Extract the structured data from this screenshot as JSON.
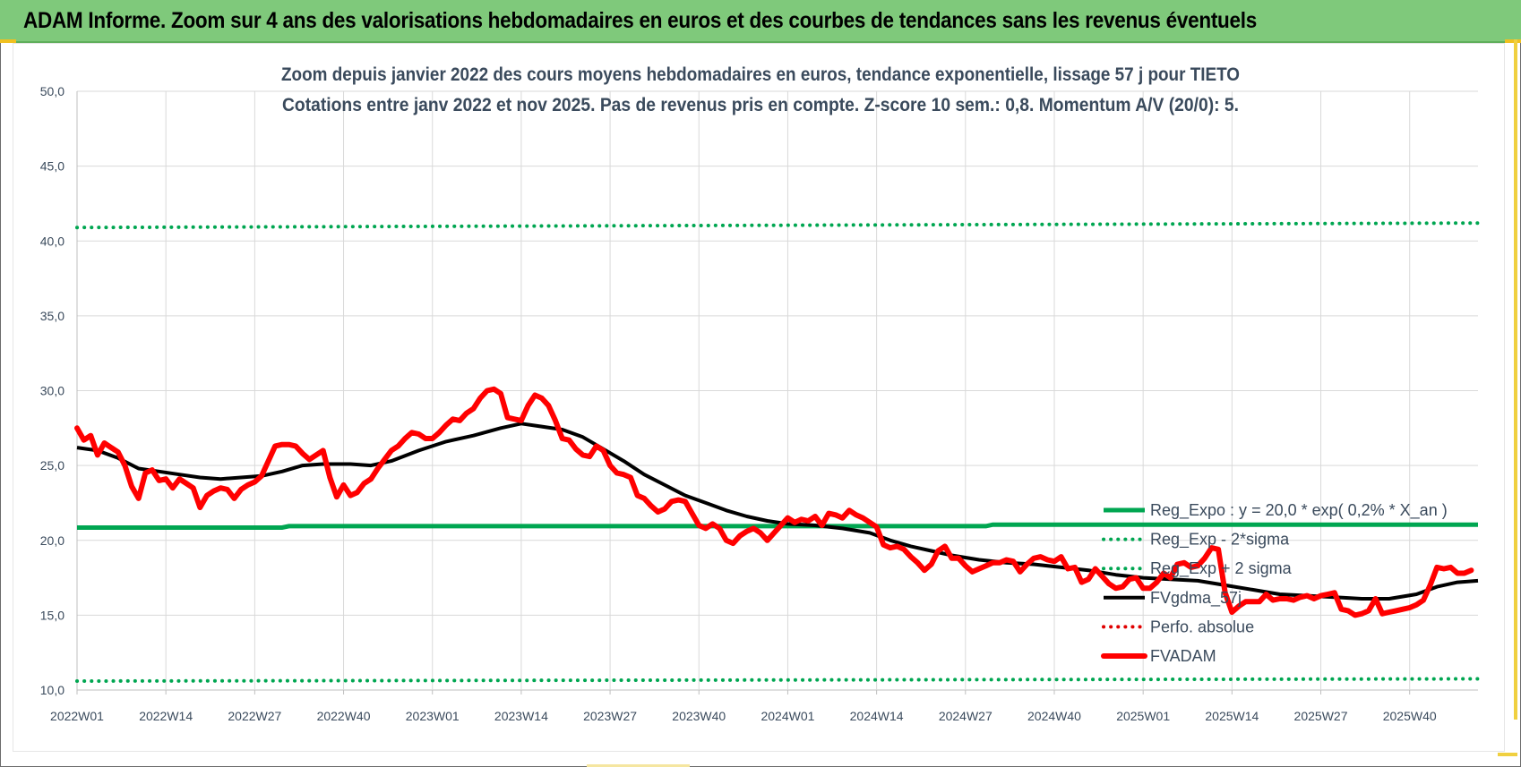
{
  "header": {
    "title": "ADAM Informe. Zoom sur 4 ans des valorisations hebdomadaires en euros et des courbes de tendances sans les revenus éventuels"
  },
  "chart_data": {
    "type": "line",
    "title": "Zoom depuis janvier 2022 des cours moyens hebdomadaires en euros, tendance exponentielle, lissage 57 j pour TIETO",
    "subtitle": "Cotations entre janv 2022 et nov 2025. Pas de revenus pris en compte. Z-score 10 sem.: 0,8. Momentum A/V (20/0): 5.",
    "xlabel": "",
    "ylabel": "",
    "ylim": [
      10,
      50
    ],
    "yticks": [
      "10,0",
      "15,0",
      "20,0",
      "25,0",
      "30,0",
      "35,0",
      "40,0",
      "45,0",
      "50,0"
    ],
    "xticks": [
      "2022W01",
      "2022W14",
      "2022W27",
      "2022W40",
      "2023W01",
      "2023W14",
      "2023W27",
      "2023W40",
      "2024W01",
      "2024W14",
      "2024W27",
      "2024W40",
      "2025W01",
      "2025W14",
      "2025W27",
      "2025W40"
    ],
    "x_unit": "week index from 2022W01",
    "grid": true,
    "legend_position": "right",
    "series": [
      {
        "name": "Reg_Expo : y = 20,0 * exp( 0,2% * X_an )",
        "color": "#00a651",
        "style": "solid",
        "points": [
          [
            0,
            20.85
          ],
          [
            30,
            20.85
          ],
          [
            31,
            20.95
          ],
          [
            133,
            20.95
          ],
          [
            134,
            21.05
          ],
          [
            205,
            21.05
          ]
        ]
      },
      {
        "name": "Reg_Exp - 2*sigma",
        "color": "#00a651",
        "style": "dotted",
        "points": [
          [
            0,
            10.6
          ],
          [
            205,
            10.75
          ]
        ]
      },
      {
        "name": "Reg_Exp + 2 sigma",
        "color": "#00a651",
        "style": "dotted",
        "points": [
          [
            0,
            40.9
          ],
          [
            205,
            41.2
          ]
        ]
      },
      {
        "name": "FVgdma_57j",
        "color": "#000000",
        "style": "solid",
        "points": [
          [
            0,
            26.2
          ],
          [
            3,
            26.0
          ],
          [
            6,
            25.5
          ],
          [
            9,
            24.8
          ],
          [
            12,
            24.6
          ],
          [
            15,
            24.4
          ],
          [
            18,
            24.2
          ],
          [
            21,
            24.1
          ],
          [
            24,
            24.2
          ],
          [
            27,
            24.3
          ],
          [
            30,
            24.6
          ],
          [
            33,
            25.0
          ],
          [
            36,
            25.1
          ],
          [
            40,
            25.1
          ],
          [
            43,
            25.0
          ],
          [
            46,
            25.3
          ],
          [
            50,
            26.0
          ],
          [
            54,
            26.6
          ],
          [
            58,
            27.0
          ],
          [
            62,
            27.5
          ],
          [
            65,
            27.8
          ],
          [
            68,
            27.6
          ],
          [
            71,
            27.4
          ],
          [
            74,
            26.9
          ],
          [
            77,
            26.1
          ],
          [
            80,
            25.3
          ],
          [
            83,
            24.4
          ],
          [
            86,
            23.7
          ],
          [
            89,
            23.0
          ],
          [
            92,
            22.5
          ],
          [
            95,
            22.0
          ],
          [
            98,
            21.6
          ],
          [
            101,
            21.3
          ],
          [
            104,
            21.1
          ],
          [
            108,
            21.0
          ],
          [
            112,
            20.8
          ],
          [
            116,
            20.5
          ],
          [
            119,
            20.0
          ],
          [
            122,
            19.6
          ],
          [
            125,
            19.3
          ],
          [
            128,
            19.0
          ],
          [
            132,
            18.7
          ],
          [
            136,
            18.5
          ],
          [
            140,
            18.4
          ],
          [
            144,
            18.2
          ],
          [
            148,
            18.0
          ],
          [
            152,
            17.7
          ],
          [
            156,
            17.5
          ],
          [
            160,
            17.4
          ],
          [
            164,
            17.3
          ],
          [
            168,
            17.0
          ],
          [
            172,
            16.7
          ],
          [
            176,
            16.4
          ],
          [
            180,
            16.3
          ],
          [
            184,
            16.2
          ],
          [
            188,
            16.1
          ],
          [
            192,
            16.1
          ],
          [
            196,
            16.4
          ],
          [
            199,
            16.9
          ],
          [
            202,
            17.2
          ],
          [
            205,
            17.3
          ]
        ]
      },
      {
        "name": "Perfo. absolue",
        "color": "#e00000",
        "style": "dotted",
        "points": []
      },
      {
        "name": "FVADAM",
        "color": "#ff0000",
        "style": "solid-thick",
        "points": [
          [
            0,
            27.5
          ],
          [
            1,
            26.7
          ],
          [
            2,
            27.0
          ],
          [
            3,
            25.7
          ],
          [
            4,
            26.5
          ],
          [
            5,
            26.2
          ],
          [
            6,
            25.9
          ],
          [
            7,
            25.0
          ],
          [
            8,
            23.6
          ],
          [
            9,
            22.8
          ],
          [
            10,
            24.5
          ],
          [
            11,
            24.7
          ],
          [
            12,
            24.0
          ],
          [
            13,
            24.1
          ],
          [
            14,
            23.5
          ],
          [
            15,
            24.1
          ],
          [
            16,
            23.8
          ],
          [
            17,
            23.5
          ],
          [
            18,
            22.2
          ],
          [
            19,
            23.0
          ],
          [
            20,
            23.3
          ],
          [
            21,
            23.5
          ],
          [
            22,
            23.4
          ],
          [
            23,
            22.8
          ],
          [
            24,
            23.4
          ],
          [
            25,
            23.7
          ],
          [
            26,
            23.9
          ],
          [
            27,
            24.3
          ],
          [
            28,
            25.3
          ],
          [
            29,
            26.3
          ],
          [
            30,
            26.4
          ],
          [
            31,
            26.4
          ],
          [
            32,
            26.3
          ],
          [
            33,
            25.8
          ],
          [
            34,
            25.4
          ],
          [
            35,
            25.7
          ],
          [
            36,
            26.0
          ],
          [
            37,
            24.2
          ],
          [
            38,
            22.9
          ],
          [
            39,
            23.7
          ],
          [
            40,
            23.0
          ],
          [
            41,
            23.2
          ],
          [
            42,
            23.8
          ],
          [
            43,
            24.1
          ],
          [
            44,
            24.8
          ],
          [
            45,
            25.4
          ],
          [
            46,
            26.0
          ],
          [
            47,
            26.3
          ],
          [
            48,
            26.8
          ],
          [
            49,
            27.2
          ],
          [
            50,
            27.1
          ],
          [
            51,
            26.8
          ],
          [
            52,
            26.8
          ],
          [
            53,
            27.2
          ],
          [
            54,
            27.7
          ],
          [
            55,
            28.1
          ],
          [
            56,
            28.0
          ],
          [
            57,
            28.5
          ],
          [
            58,
            28.8
          ],
          [
            59,
            29.5
          ],
          [
            60,
            30.0
          ],
          [
            61,
            30.1
          ],
          [
            62,
            29.8
          ],
          [
            63,
            28.2
          ],
          [
            64,
            28.1
          ],
          [
            65,
            28.0
          ],
          [
            66,
            29.0
          ],
          [
            67,
            29.7
          ],
          [
            68,
            29.5
          ],
          [
            69,
            29.0
          ],
          [
            70,
            28.0
          ],
          [
            71,
            26.8
          ],
          [
            72,
            26.7
          ],
          [
            73,
            26.1
          ],
          [
            74,
            25.7
          ],
          [
            75,
            25.6
          ],
          [
            76,
            26.3
          ],
          [
            77,
            26.0
          ],
          [
            78,
            25.0
          ],
          [
            79,
            24.5
          ],
          [
            80,
            24.4
          ],
          [
            81,
            24.2
          ],
          [
            82,
            23.0
          ],
          [
            83,
            22.8
          ],
          [
            84,
            22.3
          ],
          [
            85,
            21.9
          ],
          [
            86,
            22.1
          ],
          [
            87,
            22.6
          ],
          [
            88,
            22.7
          ],
          [
            89,
            22.6
          ],
          [
            90,
            21.8
          ],
          [
            91,
            21.0
          ],
          [
            92,
            20.8
          ],
          [
            93,
            21.1
          ],
          [
            94,
            20.8
          ],
          [
            95,
            20.0
          ],
          [
            96,
            19.8
          ],
          [
            97,
            20.3
          ],
          [
            98,
            20.6
          ],
          [
            99,
            20.8
          ],
          [
            100,
            20.5
          ],
          [
            101,
            20.0
          ],
          [
            102,
            20.5
          ],
          [
            103,
            21.0
          ],
          [
            104,
            21.5
          ],
          [
            105,
            21.2
          ],
          [
            106,
            21.4
          ],
          [
            107,
            21.3
          ],
          [
            108,
            21.6
          ],
          [
            109,
            21.0
          ],
          [
            110,
            21.8
          ],
          [
            111,
            21.7
          ],
          [
            112,
            21.5
          ],
          [
            113,
            22.0
          ],
          [
            114,
            21.7
          ],
          [
            115,
            21.5
          ],
          [
            116,
            21.2
          ],
          [
            117,
            20.9
          ],
          [
            118,
            19.7
          ],
          [
            119,
            19.5
          ],
          [
            120,
            19.6
          ],
          [
            121,
            19.4
          ],
          [
            122,
            18.9
          ],
          [
            123,
            18.5
          ],
          [
            124,
            18.0
          ],
          [
            125,
            18.4
          ],
          [
            126,
            19.3
          ],
          [
            127,
            19.6
          ],
          [
            128,
            18.8
          ],
          [
            129,
            18.8
          ],
          [
            130,
            18.3
          ],
          [
            131,
            17.9
          ],
          [
            132,
            18.1
          ],
          [
            133,
            18.3
          ],
          [
            134,
            18.5
          ],
          [
            135,
            18.5
          ],
          [
            136,
            18.7
          ],
          [
            137,
            18.6
          ],
          [
            138,
            17.9
          ],
          [
            139,
            18.4
          ],
          [
            140,
            18.8
          ],
          [
            141,
            18.9
          ],
          [
            142,
            18.7
          ],
          [
            143,
            18.6
          ],
          [
            144,
            18.9
          ],
          [
            145,
            18.1
          ],
          [
            146,
            18.2
          ],
          [
            147,
            17.2
          ],
          [
            148,
            17.4
          ],
          [
            149,
            18.1
          ],
          [
            150,
            17.6
          ],
          [
            151,
            17.1
          ],
          [
            152,
            16.8
          ],
          [
            153,
            16.9
          ],
          [
            154,
            17.4
          ],
          [
            155,
            17.5
          ],
          [
            156,
            16.8
          ],
          [
            157,
            16.8
          ],
          [
            158,
            17.2
          ],
          [
            159,
            17.8
          ],
          [
            160,
            17.5
          ],
          [
            161,
            18.4
          ],
          [
            162,
            18.5
          ],
          [
            163,
            18.2
          ],
          [
            164,
            18.3
          ],
          [
            165,
            18.8
          ],
          [
            166,
            19.5
          ],
          [
            167,
            19.4
          ],
          [
            168,
            16.5
          ],
          [
            169,
            15.2
          ],
          [
            170,
            15.6
          ],
          [
            171,
            15.9
          ],
          [
            172,
            15.9
          ],
          [
            173,
            15.9
          ],
          [
            174,
            16.4
          ],
          [
            175,
            16.0
          ],
          [
            176,
            16.1
          ],
          [
            177,
            16.1
          ],
          [
            178,
            16.0
          ],
          [
            179,
            16.2
          ],
          [
            180,
            16.3
          ],
          [
            181,
            16.1
          ],
          [
            182,
            16.3
          ],
          [
            183,
            16.4
          ],
          [
            184,
            16.5
          ],
          [
            185,
            15.4
          ],
          [
            186,
            15.3
          ],
          [
            187,
            15.0
          ],
          [
            188,
            15.1
          ],
          [
            189,
            15.3
          ],
          [
            190,
            16.1
          ],
          [
            191,
            15.1
          ],
          [
            192,
            15.2
          ],
          [
            193,
            15.3
          ],
          [
            194,
            15.4
          ],
          [
            195,
            15.5
          ],
          [
            196,
            15.7
          ],
          [
            197,
            16.0
          ],
          [
            198,
            17.0
          ],
          [
            199,
            18.2
          ],
          [
            200,
            18.1
          ],
          [
            201,
            18.2
          ],
          [
            202,
            17.8
          ],
          [
            203,
            17.8
          ],
          [
            204,
            18.0
          ]
        ]
      }
    ]
  }
}
